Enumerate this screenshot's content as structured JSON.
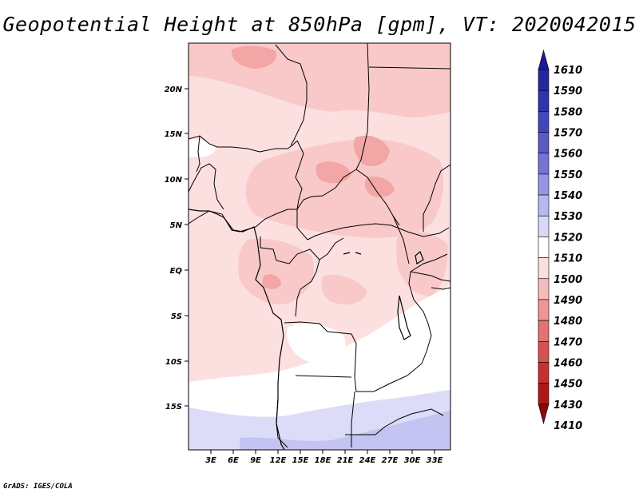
{
  "title": "Geopotential Height at 850hPa [gpm], VT: 2020042015",
  "footer": "GrADS: IGES/COLA",
  "map": {
    "lat_labels": [
      "20N",
      "15N",
      "10N",
      "5N",
      "EQ",
      "5S",
      "10S",
      "15S"
    ],
    "lon_labels": [
      "3E",
      "6E",
      "9E",
      "12E",
      "15E",
      "18E",
      "21E",
      "24E",
      "27E",
      "30E",
      "33E"
    ],
    "colors": {
      "pink_light": "#fce0e0",
      "pink_mid": "#f9c9c9",
      "pink_dark": "#f2a6a6",
      "white": "#ffffff",
      "blue_light": "#dcdcf8",
      "blue_mid": "#c4c4f2"
    }
  },
  "colorbar": {
    "labels": [
      "1610",
      "1590",
      "1580",
      "1570",
      "1560",
      "1550",
      "1540",
      "1530",
      "1520",
      "1510",
      "1500",
      "1490",
      "1480",
      "1470",
      "1460",
      "1450",
      "1430",
      "1410"
    ],
    "colors": [
      "#1a1a9a",
      "#26269f",
      "#3232ad",
      "#4646bc",
      "#5a5ac9",
      "#7474d6",
      "#9696e2",
      "#b8b8ee",
      "#d8d8f8",
      "#ffffff",
      "#fcdede",
      "#f6bcbc",
      "#ee9696",
      "#e47272",
      "#d85050",
      "#c83030",
      "#b01818",
      "#8a0a0a"
    ]
  }
}
